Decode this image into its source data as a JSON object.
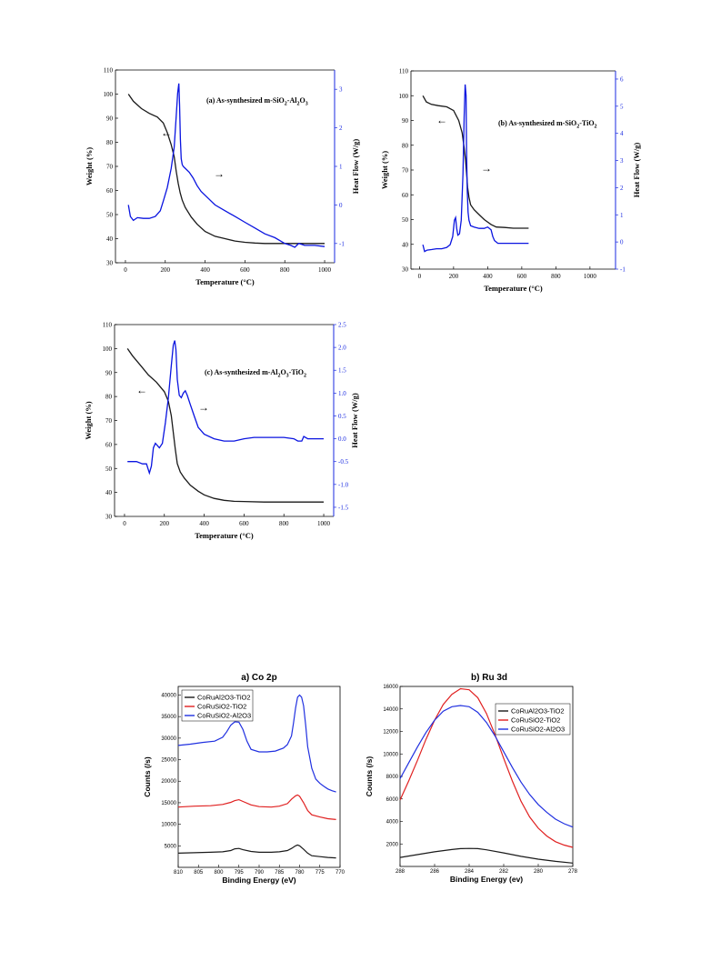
{
  "chart_data": [
    {
      "type": "line",
      "panel": "tga-a",
      "annotation": "(a)   As-synthesized m-SiO2-Al2O3",
      "annotation_parts": {
        "prefix": "(a)   As-synthesized m-SiO",
        "s1": "2",
        "mid": "-Al",
        "s2": "2",
        "mid2": "O",
        "s3": "3"
      },
      "xlabel": "Temperature (°C)",
      "ylabel": "Weight (%)",
      "y2label": "Heat Flow (W/g)",
      "xlim": [
        -50,
        1050
      ],
      "ylim": [
        30,
        110
      ],
      "y2lim": [
        -1.5,
        3.5
      ],
      "xticks": [
        0,
        200,
        400,
        600,
        800,
        1000
      ],
      "yticks": [
        30,
        40,
        50,
        60,
        70,
        80,
        90,
        100,
        110
      ],
      "y2ticks": [
        -1,
        0,
        1,
        2,
        3
      ],
      "series": [
        {
          "axis": "left",
          "color": "#1a1a1a",
          "x": [
            15,
            40,
            80,
            120,
            160,
            190,
            210,
            230,
            245,
            255,
            265,
            275,
            285,
            300,
            330,
            360,
            400,
            450,
            500,
            550,
            600,
            650,
            700,
            800,
            900,
            1000
          ],
          "y": [
            100,
            97,
            94,
            92,
            90.5,
            88,
            84,
            79,
            74,
            68,
            63,
            59,
            56,
            53,
            49,
            46,
            43,
            41,
            40,
            39,
            38.5,
            38.2,
            38,
            38,
            38,
            38
          ]
        },
        {
          "axis": "right",
          "color": "#0a14e0",
          "x": [
            15,
            25,
            40,
            60,
            90,
            120,
            150,
            175,
            190,
            210,
            230,
            245,
            255,
            262,
            268,
            272,
            276,
            280,
            285,
            290,
            300,
            320,
            340,
            360,
            380,
            400,
            450,
            500,
            550,
            600,
            650,
            700,
            750,
            800,
            830,
            850,
            870,
            900,
            950,
            1000
          ],
          "y": [
            0,
            -0.3,
            -0.4,
            -0.33,
            -0.35,
            -0.35,
            -0.3,
            -0.15,
            0.1,
            0.45,
            0.95,
            1.5,
            2.3,
            2.9,
            3.15,
            2.6,
            1.7,
            1.2,
            1.05,
            1.0,
            0.95,
            0.85,
            0.7,
            0.5,
            0.35,
            0.25,
            0.0,
            -0.15,
            -0.3,
            -0.45,
            -0.6,
            -0.75,
            -0.85,
            -1.0,
            -1.05,
            -1.1,
            -1.0,
            -1.05,
            -1.05,
            -1.08
          ]
        }
      ],
      "arrows": {
        "left": "←",
        "right": "→"
      }
    },
    {
      "type": "line",
      "panel": "tga-b",
      "annotation": "(b)  As-synthesized m-SiO2-TiO2",
      "annotation_parts": {
        "prefix": "(b)  As-synthesized m-SiO",
        "s1": "2",
        "mid": "-TiO",
        "s2": "2"
      },
      "xlabel": "Temperature (°C)",
      "ylabel": "Weight (%)",
      "y2label": "Heat Flow (W/g)",
      "xlim": [
        -50,
        1150
      ],
      "ylim": [
        30,
        110
      ],
      "y2lim": [
        -1,
        6.3
      ],
      "xticks": [
        0,
        200,
        400,
        600,
        800,
        1000
      ],
      "yticks": [
        30,
        40,
        50,
        60,
        70,
        80,
        90,
        100,
        110
      ],
      "y2ticks": [
        -1,
        0,
        1,
        2,
        3,
        4,
        5,
        6
      ],
      "series": [
        {
          "axis": "left",
          "color": "#1a1a1a",
          "x": [
            20,
            40,
            70,
            110,
            160,
            200,
            230,
            250,
            262,
            270,
            276,
            282,
            290,
            300,
            320,
            350,
            380,
            420,
            450,
            500,
            550,
            600,
            640
          ],
          "y": [
            100,
            97.5,
            96.5,
            96,
            95.5,
            94,
            90,
            85,
            79,
            74,
            69,
            63,
            59,
            56,
            54,
            52,
            50,
            48,
            47,
            46.8,
            46.5,
            46.5,
            46.5
          ]
        },
        {
          "axis": "right",
          "color": "#0a14e0",
          "x": [
            20,
            30,
            45,
            70,
            100,
            130,
            160,
            180,
            195,
            205,
            212,
            218,
            225,
            235,
            245,
            255,
            262,
            268,
            273,
            276,
            280,
            285,
            290,
            300,
            320,
            350,
            380,
            400,
            420,
            430,
            440,
            460,
            500,
            550,
            600,
            640
          ],
          "y": [
            -0.1,
            -0.35,
            -0.3,
            -0.28,
            -0.25,
            -0.25,
            -0.2,
            -0.1,
            0.2,
            0.8,
            0.9,
            0.5,
            0.25,
            0.3,
            0.8,
            2.5,
            4.6,
            5.8,
            5.4,
            3.5,
            1.9,
            1.1,
            0.8,
            0.6,
            0.55,
            0.5,
            0.5,
            0.55,
            0.45,
            0.2,
            0.05,
            -0.05,
            -0.05,
            -0.05,
            -0.05,
            -0.05
          ]
        }
      ],
      "arrows": {
        "left": "←",
        "right": "→"
      }
    },
    {
      "type": "line",
      "panel": "tga-c",
      "annotation": "(c)   As-synthesized m-Al2O3-TiO2",
      "annotation_parts": {
        "prefix": "(c)   As-synthesized m-Al",
        "s1": "2",
        "mid": "O",
        "s2": "3",
        "mid2": "-TiO",
        "s3": "2"
      },
      "xlabel": "Temperature (°C)",
      "ylabel": "Weight (%)",
      "y2label": "Heat Flow (W/g)",
      "xlim": [
        -50,
        1050
      ],
      "ylim": [
        30,
        110
      ],
      "y2lim": [
        -1.7,
        2.5
      ],
      "xticks": [
        0,
        200,
        400,
        600,
        800,
        1000
      ],
      "yticks": [
        30,
        40,
        50,
        60,
        70,
        80,
        90,
        100,
        110
      ],
      "y2ticks": [
        -1.5,
        -1.0,
        -0.5,
        0.0,
        0.5,
        1.0,
        1.5,
        2.0,
        2.5
      ],
      "y2ticklabels": [
        "-1.5",
        "-1.0",
        "-0.5",
        "0.0",
        "0.5",
        "1.0",
        "1.5",
        "2.0",
        "2.5"
      ],
      "series": [
        {
          "axis": "left",
          "color": "#1a1a1a",
          "x": [
            15,
            40,
            80,
            120,
            160,
            200,
            220,
            235,
            245,
            255,
            265,
            280,
            300,
            330,
            370,
            400,
            450,
            500,
            550,
            600,
            700,
            800,
            900,
            1000
          ],
          "y": [
            100,
            97,
            93,
            89,
            86,
            82,
            78,
            72,
            65,
            58,
            52,
            48.5,
            46,
            43,
            40.5,
            39,
            37.5,
            36.7,
            36.3,
            36.2,
            36,
            36,
            36,
            36
          ]
        },
        {
          "axis": "right",
          "color": "#0a14e0",
          "x": [
            15,
            30,
            60,
            90,
            110,
            125,
            135,
            145,
            155,
            165,
            175,
            190,
            205,
            220,
            235,
            245,
            252,
            258,
            265,
            275,
            285,
            295,
            305,
            315,
            330,
            350,
            370,
            400,
            450,
            500,
            550,
            600,
            650,
            700,
            750,
            800,
            850,
            870,
            880,
            890,
            900,
            920,
            950,
            1000
          ],
          "y": [
            -0.5,
            -0.5,
            -0.5,
            -0.55,
            -0.55,
            -0.75,
            -0.6,
            -0.2,
            -0.1,
            -0.15,
            -0.2,
            -0.1,
            0.35,
            0.9,
            1.6,
            2.05,
            2.15,
            1.95,
            1.3,
            0.95,
            0.9,
            1.0,
            1.05,
            0.95,
            0.75,
            0.5,
            0.25,
            0.1,
            0.0,
            -0.05,
            -0.05,
            0.0,
            0.03,
            0.03,
            0.03,
            0.03,
            0.0,
            -0.05,
            -0.05,
            -0.05,
            0.05,
            0.0,
            0.0,
            0.0
          ]
        }
      ],
      "arrows": {
        "left": "←",
        "right": "→"
      }
    },
    {
      "type": "line",
      "panel": "xps-co",
      "title": "a) Co 2p",
      "xlabel": "Binding Energy (eV)",
      "ylabel": "Counts (/s)",
      "xlim": [
        810,
        770
      ],
      "ylim": [
        0,
        42000
      ],
      "xticks": [
        810,
        805,
        800,
        795,
        790,
        785,
        780,
        775,
        770
      ],
      "yticks": [
        5000,
        10000,
        15000,
        20000,
        25000,
        30000,
        35000,
        40000
      ],
      "legend": [
        {
          "name": "CoRuAl2O3-TiO2",
          "color": "#1a1a1a"
        },
        {
          "name": "CoRuSiO2-TiO2",
          "color": "#e02020"
        },
        {
          "name": "CoRuSiO2-Al2O3",
          "color": "#2030e0"
        }
      ],
      "series": [
        {
          "name": "CoRuAl2O3-TiO2",
          "color": "#1a1a1a",
          "x": [
            810,
            806,
            802,
            799,
            797,
            796,
            795,
            794,
            792,
            790,
            787,
            785,
            783,
            782,
            781,
            780.5,
            780,
            779,
            778,
            777,
            775,
            773,
            771
          ],
          "y": [
            3300,
            3400,
            3500,
            3600,
            3900,
            4300,
            4400,
            4100,
            3700,
            3500,
            3500,
            3600,
            3900,
            4400,
            5000,
            5200,
            5000,
            4200,
            3300,
            2700,
            2500,
            2300,
            2200
          ]
        },
        {
          "name": "CoRuSiO2-TiO2",
          "color": "#e02020",
          "x": [
            810,
            806,
            802,
            799,
            797,
            796,
            795,
            794,
            792,
            790,
            787,
            785,
            783,
            782,
            781,
            780.5,
            780,
            779,
            778,
            777,
            775,
            773,
            771
          ],
          "y": [
            14000,
            14200,
            14300,
            14600,
            15100,
            15500,
            15700,
            15300,
            14500,
            14100,
            14000,
            14200,
            14800,
            15800,
            16600,
            16800,
            16500,
            15000,
            13200,
            12200,
            11700,
            11300,
            11100
          ]
        },
        {
          "name": "CoRuSiO2-Al2O3",
          "color": "#2030e0",
          "x": [
            810,
            807,
            804,
            801,
            799,
            798,
            797,
            796,
            795,
            794,
            793,
            792,
            790,
            788,
            786,
            784,
            783,
            782,
            781.5,
            781,
            780.5,
            780,
            779.5,
            779,
            778.5,
            778,
            777,
            776,
            775,
            774,
            773,
            772,
            771
          ],
          "y": [
            28300,
            28600,
            29000,
            29300,
            30200,
            31500,
            33000,
            33800,
            33700,
            32000,
            29300,
            27400,
            26800,
            26800,
            27000,
            27700,
            28500,
            30500,
            33500,
            37000,
            39500,
            40000,
            39500,
            37500,
            33000,
            28000,
            23000,
            20500,
            19500,
            18800,
            18200,
            17800,
            17500
          ]
        }
      ]
    },
    {
      "type": "line",
      "panel": "xps-ru",
      "title": "b) Ru 3d",
      "xlabel": "Binding Energy (ev)",
      "ylabel": "Counts (/s)",
      "xlim": [
        288,
        278
      ],
      "ylim": [
        0,
        16000
      ],
      "xticks": [
        288,
        286,
        284,
        282,
        280,
        278
      ],
      "yticks": [
        2000,
        4000,
        6000,
        8000,
        10000,
        12000,
        14000,
        16000
      ],
      "legend": [
        {
          "name": "CoRuAl2O3-TiO2",
          "color": "#1a1a1a"
        },
        {
          "name": "CoRuSiO2-TiO2",
          "color": "#e02020"
        },
        {
          "name": "CoRuSiO2-Al2O3",
          "color": "#2030e0"
        }
      ],
      "series": [
        {
          "name": "CoRuAl2O3-TiO2",
          "color": "#1a1a1a",
          "x": [
            288,
            287,
            286,
            285,
            284.5,
            284,
            283.5,
            283,
            282,
            281,
            280,
            279,
            278
          ],
          "y": [
            800,
            1050,
            1300,
            1500,
            1580,
            1600,
            1580,
            1480,
            1200,
            900,
            650,
            450,
            300
          ]
        },
        {
          "name": "CoRuSiO2-TiO2",
          "color": "#e02020",
          "x": [
            288,
            287.5,
            287,
            286.5,
            286,
            285.5,
            285,
            284.5,
            284,
            283.5,
            283,
            282.5,
            282,
            281.5,
            281,
            280.5,
            280,
            279.5,
            279,
            278.5,
            278
          ],
          "y": [
            5900,
            7600,
            9400,
            11300,
            13000,
            14400,
            15300,
            15800,
            15700,
            15000,
            13600,
            11700,
            9600,
            7600,
            5800,
            4400,
            3400,
            2700,
            2200,
            1900,
            1700
          ]
        },
        {
          "name": "CoRuSiO2-Al2O3",
          "color": "#2030e0",
          "x": [
            288,
            287.5,
            287,
            286.5,
            286,
            285.5,
            285,
            284.5,
            284,
            283.5,
            283,
            282.5,
            282,
            281.5,
            281,
            280.5,
            280,
            279.5,
            279,
            278.5,
            278
          ],
          "y": [
            7800,
            9200,
            10600,
            11900,
            13000,
            13800,
            14200,
            14300,
            14200,
            13700,
            12800,
            11600,
            10200,
            8800,
            7500,
            6400,
            5500,
            4800,
            4200,
            3800,
            3500
          ]
        }
      ]
    }
  ]
}
